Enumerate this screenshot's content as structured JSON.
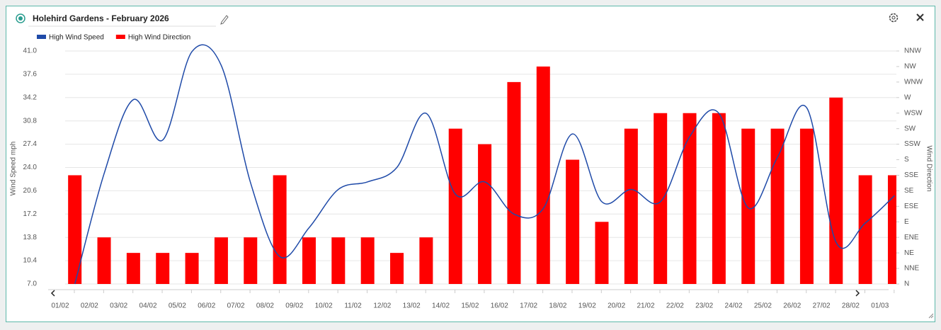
{
  "header": {
    "title": "Holehird Gardens - February 2026"
  },
  "chart_data": {
    "type": "combo",
    "categories": [
      "01/02",
      "02/02",
      "03/02",
      "04/02",
      "05/02",
      "06/02",
      "07/02",
      "08/02",
      "09/02",
      "10/02",
      "11/02",
      "12/02",
      "13/02",
      "14/02",
      "15/02",
      "16/02",
      "17/02",
      "18/02",
      "19/02",
      "20/02",
      "21/02",
      "22/02",
      "23/02",
      "24/02",
      "25/02",
      "26/02",
      "27/02",
      "28/02",
      "01/03"
    ],
    "series": [
      {
        "name": "High Wind Speed",
        "type": "line",
        "color": "#1f4aa8",
        "axis": "y",
        "values": [
          7.0,
          23.1,
          33.9,
          28.0,
          40.9,
          38.9,
          21.8,
          11.0,
          15.2,
          20.8,
          21.9,
          24.0,
          31.9,
          20.1,
          21.9,
          17.2,
          18.0,
          28.9,
          19.0,
          20.8,
          19.0,
          28.5,
          31.9,
          18.1,
          25.5,
          32.7,
          13.1,
          15.9,
          19.9
        ]
      },
      {
        "name": "High Wind Direction",
        "type": "bar",
        "color": "#ff0000",
        "axis": "y2",
        "values": [
          157.5,
          67.5,
          45,
          45,
          45,
          67.5,
          67.5,
          157.5,
          67.5,
          67.5,
          67.5,
          45,
          67.5,
          225,
          202.5,
          292.5,
          315,
          180,
          90,
          225,
          247.5,
          247.5,
          247.5,
          225,
          225,
          225,
          270,
          157.5,
          157.5
        ]
      }
    ],
    "ylabel": "Wind Speed mph",
    "y2label": "Wind Direction",
    "ylim": [
      7,
      41
    ],
    "yticks": [
      {
        "value": 7,
        "label": "7.0"
      },
      10.4,
      13.8,
      17.2,
      20.6,
      {
        "value": 24,
        "label": "24.0"
      },
      27.4,
      30.8,
      34.2,
      37.6,
      {
        "value": 41,
        "label": "41.0"
      }
    ],
    "y2lim": [
      0,
      337.5
    ],
    "y2ticks": [
      {
        "value": 0,
        "label": "N"
      },
      {
        "value": 22.5,
        "label": "NNE"
      },
      {
        "value": 45,
        "label": "NE"
      },
      {
        "value": 67.5,
        "label": "ENE"
      },
      {
        "value": 90,
        "label": "E"
      },
      {
        "value": 112.5,
        "label": "ESE"
      },
      {
        "value": 135,
        "label": "SE"
      },
      {
        "value": 157.5,
        "label": "SSE"
      },
      {
        "value": 180,
        "label": "S"
      },
      {
        "value": 202.5,
        "label": "SSW"
      },
      {
        "value": 225,
        "label": "SW"
      },
      {
        "value": 247.5,
        "label": "WSW"
      },
      {
        "value": 270,
        "label": "W"
      },
      {
        "value": 292.5,
        "label": "WNW"
      },
      {
        "value": 315,
        "label": "NW"
      },
      {
        "value": 337.5,
        "label": "NNW"
      }
    ],
    "grid": true
  }
}
